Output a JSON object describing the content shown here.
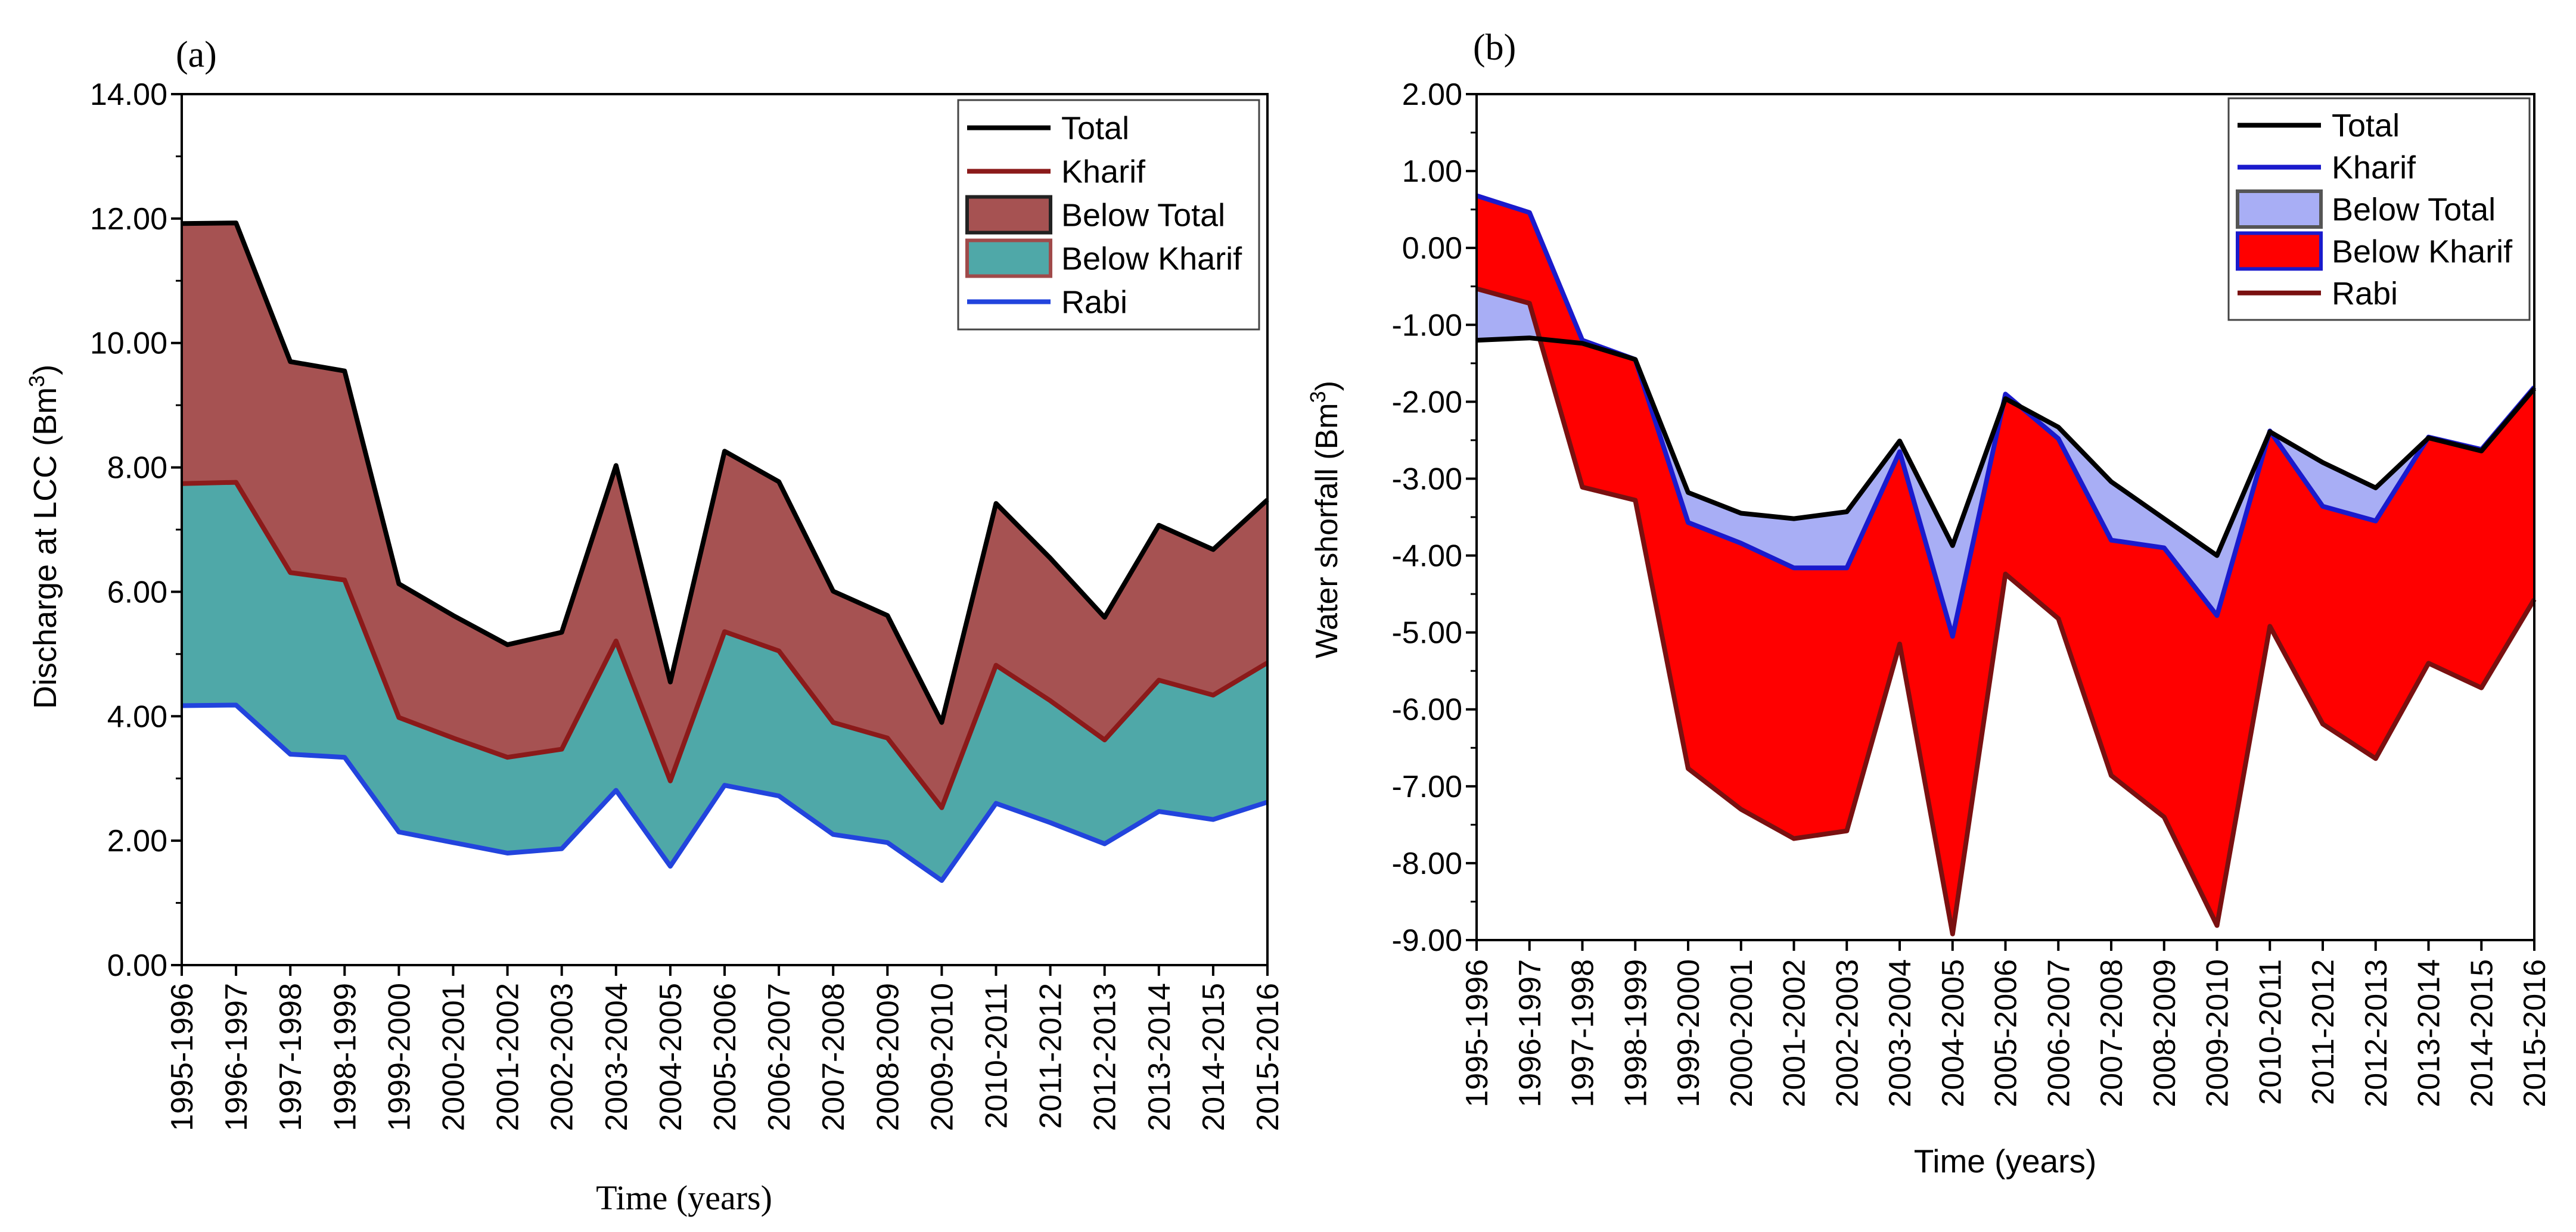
{
  "chart_data": [
    {
      "panel_label": "(a)",
      "type": "area",
      "xlabel": "Time (years)",
      "ylabel": "Discharge at LCC (Bm",
      "ylabel_sup": "3",
      "ylabel_end": ")",
      "ylim": [
        0,
        14
      ],
      "y_ticks": [
        "0.00",
        "2.00",
        "4.00",
        "6.00",
        "8.00",
        "10.00",
        "12.00",
        "14.00"
      ],
      "categories": [
        "1995-1996",
        "1996-1997",
        "1997-1998",
        "1998-1999",
        "1999-2000",
        "2000-2001",
        "2001-2002",
        "2002-2003",
        "2003-2004",
        "2004-2005",
        "2005-2006",
        "2006-2007",
        "2007-2008",
        "2008-2009",
        "2009-2010",
        "2010-2011",
        "2011-2012",
        "2012-2013",
        "2013-2014",
        "2014-2015",
        "2015-2016"
      ],
      "legend_position": "top-right",
      "legend": [
        {
          "label": "Total",
          "kind": "line",
          "color": "#000000"
        },
        {
          "label": "Kharif",
          "kind": "line",
          "color": "#8b1a1a"
        },
        {
          "label": "Below Total",
          "kind": "fill",
          "color": "#a65252",
          "edge": "#222222"
        },
        {
          "label": "Below Kharif",
          "kind": "fill",
          "color": "#4fa8a8",
          "edge": "#a04a4a"
        },
        {
          "label": "Rabi",
          "kind": "line",
          "color": "#2244dd"
        }
      ],
      "series": [
        {
          "name": "Total",
          "values": [
            11.92,
            11.93,
            9.7,
            9.55,
            6.13,
            5.62,
            5.15,
            5.35,
            8.03,
            4.55,
            8.26,
            7.77,
            6.01,
            5.62,
            3.9,
            7.42,
            6.54,
            5.59,
            7.07,
            6.68,
            7.48
          ]
        },
        {
          "name": "Kharif",
          "values": [
            7.74,
            7.76,
            6.31,
            6.19,
            3.98,
            3.65,
            3.34,
            3.47,
            5.21,
            2.96,
            5.36,
            5.05,
            3.9,
            3.65,
            2.53,
            4.82,
            4.25,
            3.62,
            4.58,
            4.34,
            4.86
          ]
        },
        {
          "name": "Rabi",
          "values": [
            4.17,
            4.18,
            3.39,
            3.34,
            2.14,
            1.97,
            1.8,
            1.87,
            2.81,
            1.59,
            2.89,
            2.72,
            2.1,
            1.97,
            1.36,
            2.6,
            2.29,
            1.95,
            2.47,
            2.34,
            2.62
          ]
        }
      ]
    },
    {
      "panel_label": "(b)",
      "type": "area",
      "xlabel": "Time (years)",
      "ylabel": "Water shorfall (Bm",
      "ylabel_sup": "3",
      "ylabel_end": ")",
      "ylim": [
        -9,
        2
      ],
      "y_ticks": [
        "2.00",
        "1.00",
        "0.00",
        "-1.00",
        "-2.00",
        "-3.00",
        "-4.00",
        "-5.00",
        "-6.00",
        "-7.00",
        "-8.00",
        "-9.00"
      ],
      "categories": [
        "1995-1996",
        "1996-1997",
        "1997-1998",
        "1998-1999",
        "1999-2000",
        "2000-2001",
        "2001-2002",
        "2002-2003",
        "2003-2004",
        "2004-2005",
        "2005-2006",
        "2006-2007",
        "2007-2008",
        "2008-2009",
        "2009-2010",
        "2010-2011",
        "2011-2012",
        "2012-2013",
        "2013-2014",
        "2014-2015",
        "2015-2016"
      ],
      "legend_position": "top-right",
      "legend": [
        {
          "label": "Total",
          "kind": "line",
          "color": "#000000"
        },
        {
          "label": "Kharif",
          "kind": "line",
          "color": "#1a1acc"
        },
        {
          "label": "Below Total",
          "kind": "fill",
          "color": "#a8aef5",
          "edge": "#555555"
        },
        {
          "label": "Below Kharif",
          "kind": "fill",
          "color": "#ff0000",
          "edge": "#1a1acc"
        },
        {
          "label": "Rabi",
          "kind": "line",
          "color": "#7a1010"
        }
      ],
      "series": [
        {
          "name": "Total",
          "values": [
            -1.2,
            -1.17,
            -1.24,
            -1.45,
            -3.18,
            -3.45,
            -3.52,
            -3.43,
            -2.51,
            -3.87,
            -1.96,
            -2.33,
            -3.04,
            -3.52,
            -4.0,
            -2.39,
            -2.79,
            -3.12,
            -2.47,
            -2.64,
            -1.83
          ]
        },
        {
          "name": "Kharif",
          "values": [
            0.68,
            0.46,
            -1.2,
            -1.45,
            -3.57,
            -3.84,
            -4.16,
            -4.16,
            -2.65,
            -5.05,
            -1.9,
            -2.48,
            -3.8,
            -3.9,
            -4.78,
            -2.38,
            -3.36,
            -3.55,
            -2.46,
            -2.62,
            -1.81
          ]
        },
        {
          "name": "Rabi",
          "values": [
            -0.53,
            -0.72,
            -3.11,
            -3.28,
            -6.77,
            -7.3,
            -7.68,
            -7.58,
            -5.15,
            -8.92,
            -4.24,
            -4.82,
            -6.86,
            -7.4,
            -8.81,
            -4.92,
            -6.19,
            -6.64,
            -5.4,
            -5.72,
            -4.57
          ]
        }
      ]
    }
  ]
}
